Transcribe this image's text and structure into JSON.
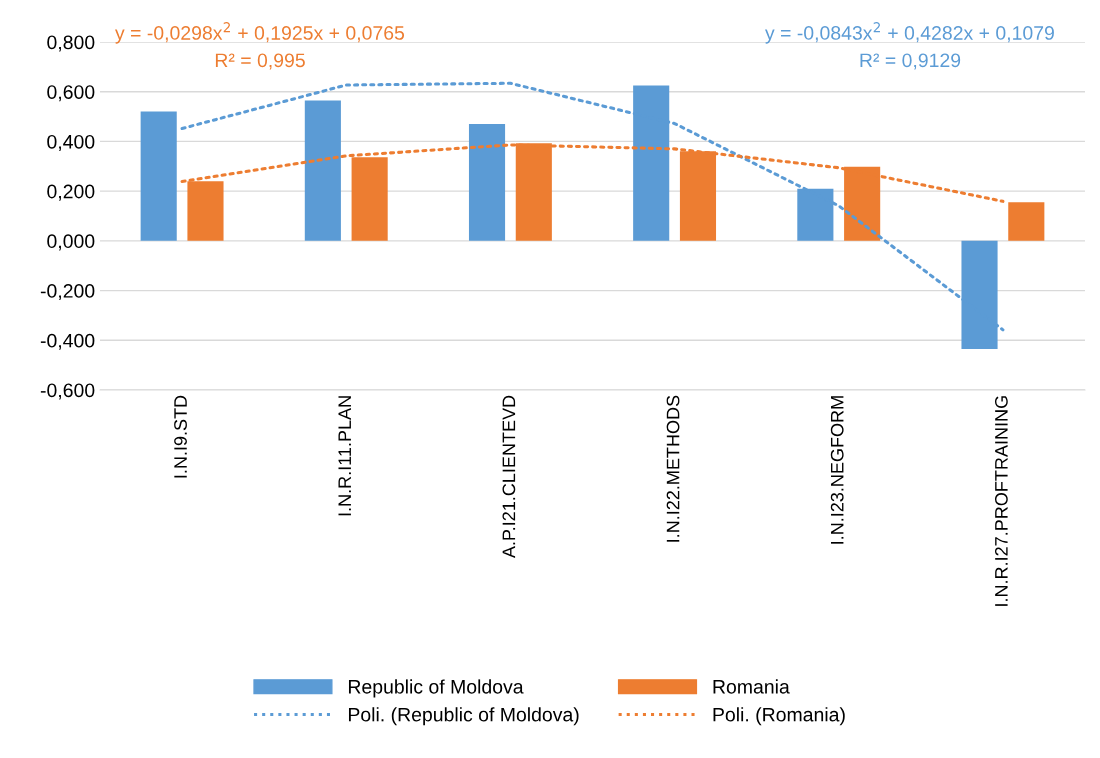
{
  "chart_data": {
    "type": "bar",
    "categories": [
      "I.N.I9.STD",
      "I.N.R.I11.PLAN",
      "A.P.I21.CLIENTEVD",
      "I.N.I22.METHODS",
      "I.N.I23.NEGFORM",
      "I.N.R.I27.PROFTRAINING"
    ],
    "series": [
      {
        "name": "Republic of Moldova",
        "color": "#5b9bd5",
        "values": [
          0.52,
          0.565,
          0.47,
          0.625,
          0.21,
          -0.435
        ]
      },
      {
        "name": "Romania",
        "color": "#ed7d31",
        "values": [
          0.24,
          0.336,
          0.393,
          0.36,
          0.298,
          0.155
        ]
      },
      {
        "name": "Poli. (Republic of Moldova)",
        "type": "line",
        "line_style": "dotted",
        "color": "#5b9bd5",
        "values": [
          0.452,
          0.627,
          0.634,
          0.472,
          0.141,
          -0.358
        ]
      },
      {
        "name": "Poli. (Romania)",
        "type": "line",
        "line_style": "dotted",
        "color": "#ed7d31",
        "values": [
          0.239,
          0.342,
          0.386,
          0.37,
          0.294,
          0.159
        ]
      }
    ],
    "ylim": [
      -0.6,
      0.8
    ],
    "yticks": [
      {
        "value": -0.6,
        "label": "-0,600"
      },
      {
        "value": -0.4,
        "label": "-0,400"
      },
      {
        "value": -0.2,
        "label": "-0,200"
      },
      {
        "value": 0,
        "label": "0,000"
      },
      {
        "value": 0.2,
        "label": "0,200"
      },
      {
        "value": 0.4,
        "label": "0,400"
      },
      {
        "value": 0.6,
        "label": "0,600"
      },
      {
        "value": 0.8,
        "label": "0,800"
      }
    ],
    "grid": "y",
    "legend": "bottom",
    "annotations": [
      "y = -0,0298x$^{2}$ + 0,1925x + 0,0765",
      "R² = 0,995",
      "y = -0,0843x$^{2}$ + 0,4282x + 0,1079",
      "R² = 0,9129"
    ]
  }
}
